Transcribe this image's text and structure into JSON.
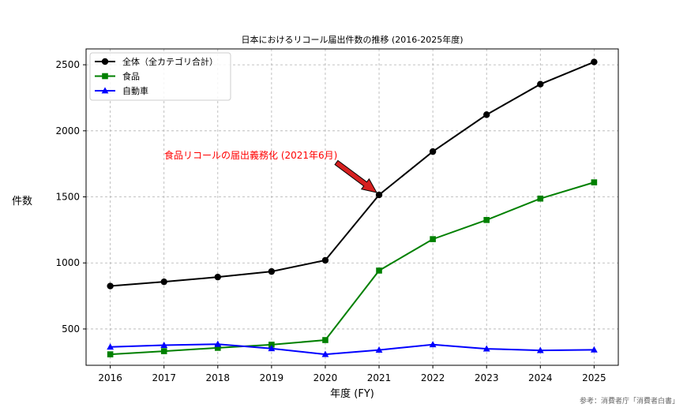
{
  "chart_data": {
    "type": "line",
    "title": "日本におけるリコール届出件数の推移 (2016-2025年度)",
    "xlabel": "年度 (FY)",
    "ylabel": "件数",
    "x": [
      2016,
      2017,
      2018,
      2019,
      2020,
      2021,
      2022,
      2023,
      2024,
      2025
    ],
    "xlim": [
      2015.55,
      2025.45
    ],
    "ylim": [
      225,
      2620
    ],
    "yticks": [
      500,
      1000,
      1500,
      2000,
      2500
    ],
    "grid": true,
    "legend_position": "upper-left",
    "series": [
      {
        "name": "全体（全カテゴリ合計）",
        "color": "#000000",
        "marker": "circle",
        "values": [
          825,
          857,
          893,
          935,
          1020,
          1515,
          1843,
          2122,
          2353,
          2521
        ]
      },
      {
        "name": "食品",
        "color": "#008000",
        "marker": "square",
        "values": [
          308,
          332,
          357,
          381,
          416,
          942,
          1180,
          1325,
          1487,
          1610
        ]
      },
      {
        "name": "自動車",
        "color": "#0000ff",
        "marker": "triangle",
        "values": [
          364,
          377,
          385,
          352,
          308,
          341,
          382,
          350,
          338,
          342
        ]
      }
    ],
    "annotation": {
      "text": "食品リコールの届出義務化 (2021年6月)",
      "color": "#ff0000",
      "x": 2021,
      "y": 1515
    },
    "source": "参考：消費者庁「消費者白書」"
  }
}
